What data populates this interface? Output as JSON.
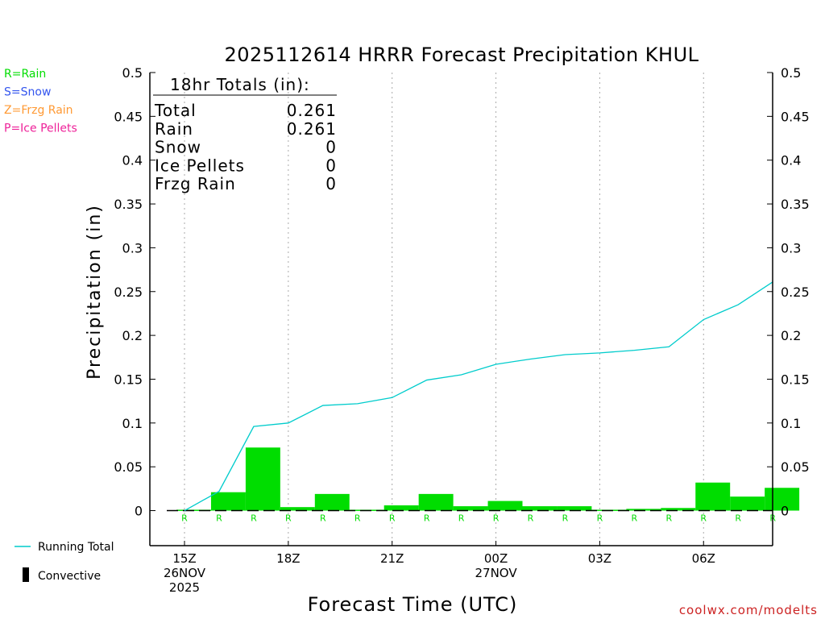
{
  "chart_data": {
    "type": "bar",
    "title": "2025112614 HRRR Forecast Precipitation KHUL",
    "ylabel": "Precipitation (in)",
    "xlabel": "Forecast Time (UTC)",
    "ylim": [
      -0.04,
      0.5
    ],
    "yticks": [
      0,
      0.05,
      0.1,
      0.15,
      0.2,
      0.25,
      0.3,
      0.35,
      0.4,
      0.45,
      0.5
    ],
    "ytick_labels": [
      "0",
      "0.05",
      "0.1",
      "0.15",
      "0.2",
      "0.25",
      "0.3",
      "0.35",
      "0.4",
      "0.45",
      "0.5"
    ],
    "x_range_hours": [
      -1,
      18
    ],
    "x_ticks": [
      {
        "hour": 0,
        "lines": [
          "15Z",
          "26NOV",
          "2025"
        ]
      },
      {
        "hour": 3,
        "lines": [
          "18Z"
        ]
      },
      {
        "hour": 6,
        "lines": [
          "21Z"
        ]
      },
      {
        "hour": 9,
        "lines": [
          "00Z",
          "27NOV"
        ]
      },
      {
        "hour": 12,
        "lines": [
          "03Z"
        ]
      },
      {
        "hour": 15,
        "lines": [
          "06Z"
        ]
      }
    ],
    "hourly_rain": [
      0.001,
      0.021,
      0.072,
      0.004,
      0.019,
      0.001,
      0.006,
      0.019,
      0.005,
      0.011,
      0.005,
      0.005,
      0.001,
      0.002,
      0.003,
      0.032,
      0.016,
      0.026
    ],
    "running_total": [
      0.0,
      0.022,
      0.096,
      0.1,
      0.12,
      0.122,
      0.129,
      0.149,
      0.155,
      0.167,
      0.173,
      0.178,
      0.18,
      0.183,
      0.187,
      0.218,
      0.235,
      0.261
    ],
    "ptype_labels": [
      "R",
      "R",
      "R",
      "R",
      "R",
      "R",
      "R",
      "R",
      "R",
      "R",
      "R",
      "R",
      "R",
      "R",
      "R",
      "R",
      "R",
      "R"
    ],
    "precip_legend": [
      {
        "text": "R=Rain",
        "color": "#00dd00"
      },
      {
        "text": "S=Snow",
        "color": "#3355ee"
      },
      {
        "text": "Z=Frzg Rain",
        "color": "#ff9933"
      },
      {
        "text": "P=Ice Pellets",
        "color": "#ee2299"
      }
    ],
    "totals_box": {
      "header": "18hr Totals (in):",
      "rows": [
        {
          "label": "Total",
          "value": "0.261"
        },
        {
          "label": "Rain",
          "value": "0.261"
        },
        {
          "label": "Snow",
          "value": "0"
        },
        {
          "label": "Ice Pellets",
          "value": "0"
        },
        {
          "label": "Frzg Rain",
          "value": "0"
        }
      ]
    },
    "series_legend": {
      "running_total": "Running Total",
      "convective": "Convective"
    },
    "colors": {
      "rain_bar": "#00dd00",
      "running_total": "#00cccc",
      "axis": "#000000",
      "grid": "#aaaaaa",
      "credit": "#cc2222"
    },
    "credit": "coolwx.com/modelts"
  }
}
